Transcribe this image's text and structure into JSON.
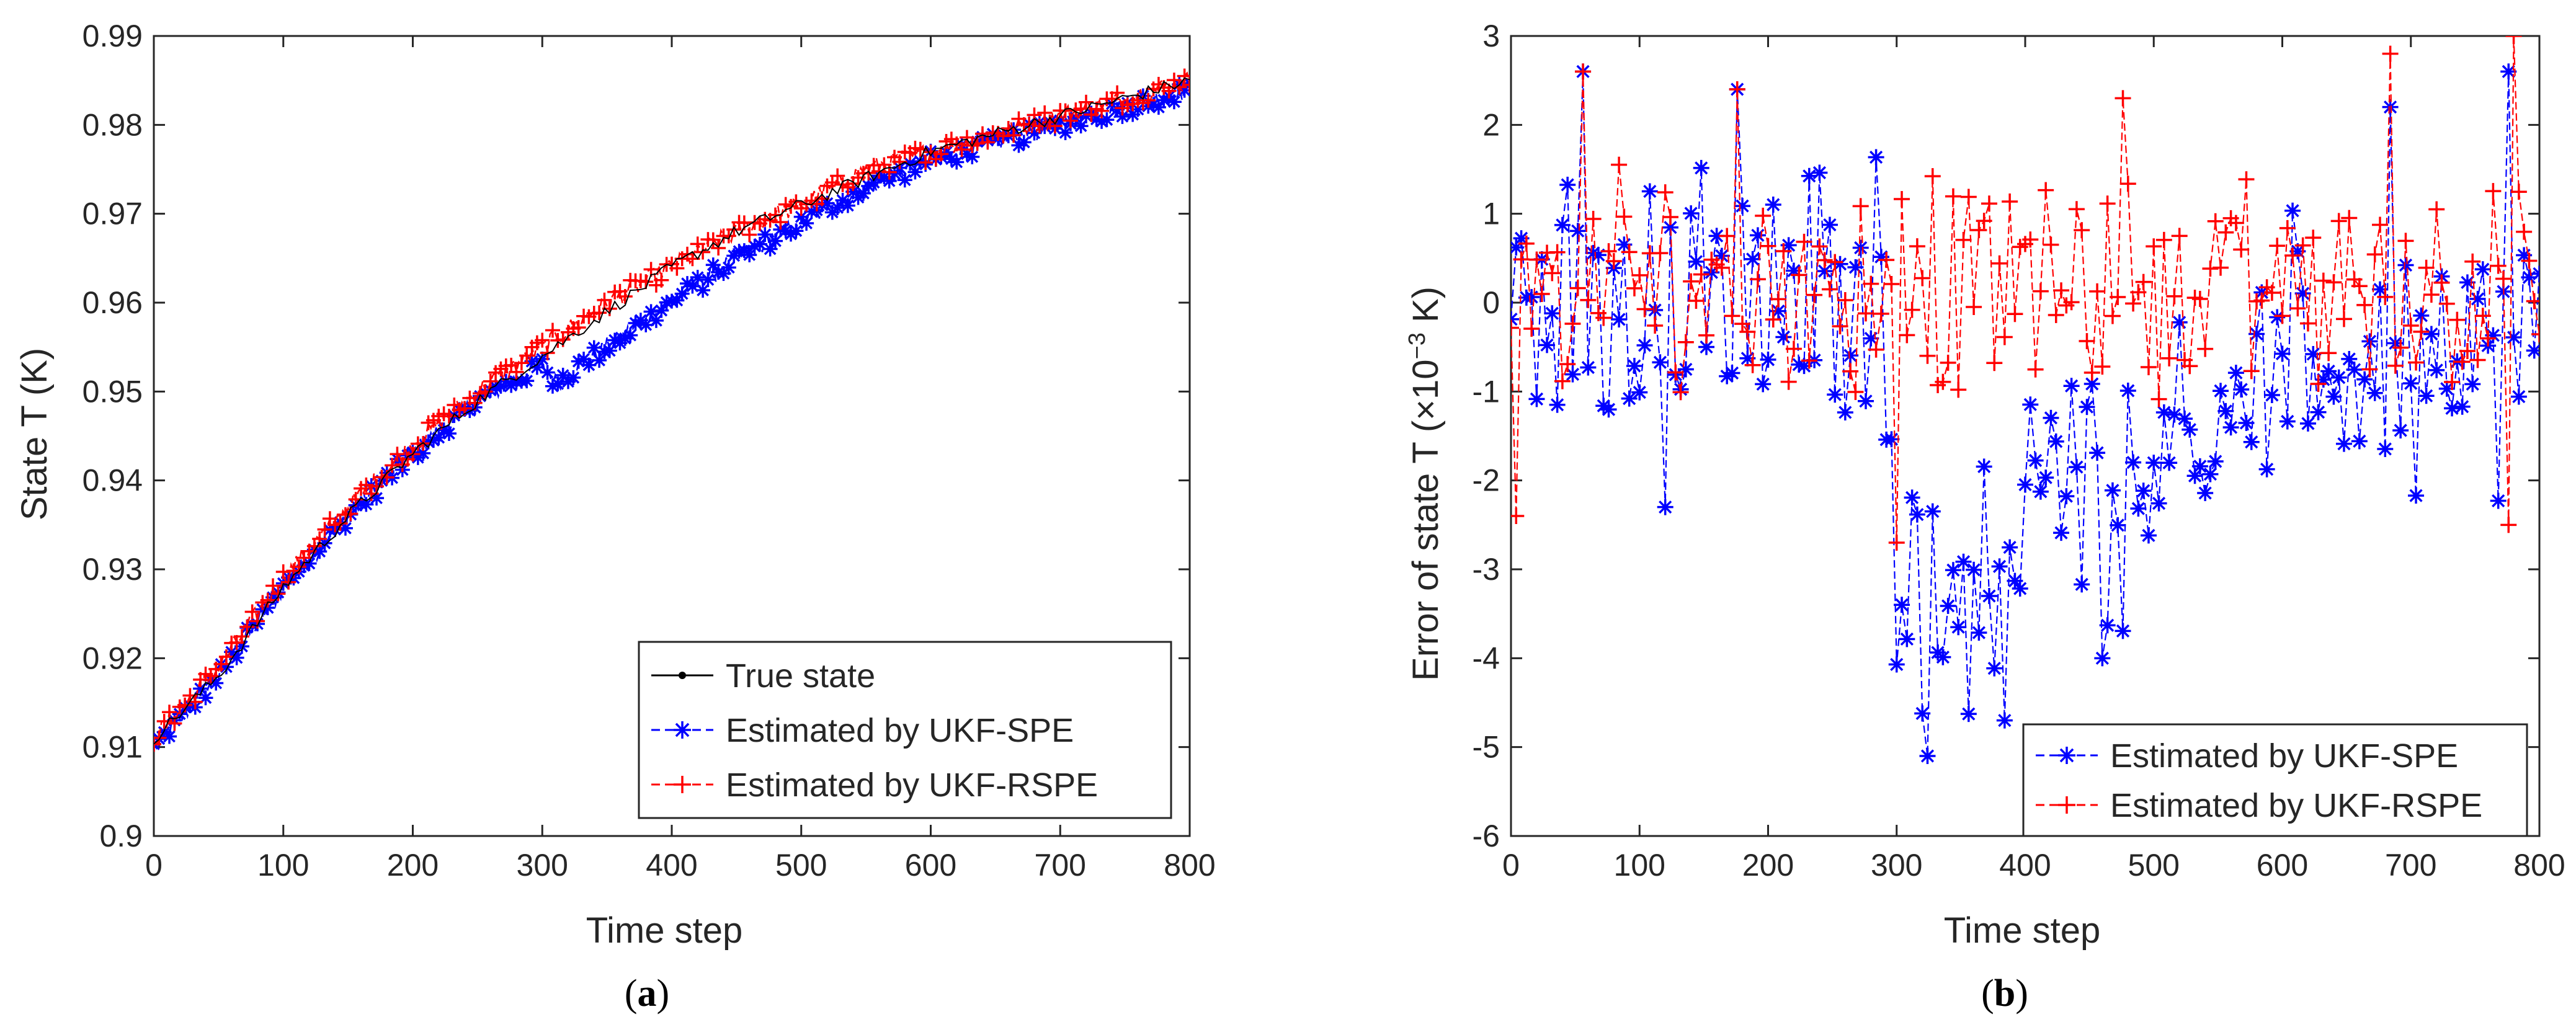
{
  "figure": {
    "captions": [
      "(a)",
      "(b)"
    ],
    "caption_letters": [
      "a",
      "b"
    ],
    "paren_open": "(",
    "paren_close": ")"
  },
  "colors": {
    "true_state": "#000000",
    "ukf_spe": "#0000ff",
    "ukf_rspe": "#ff0000",
    "axis": "#262626"
  },
  "chart_data": [
    {
      "type": "line",
      "panel": "a",
      "title": "",
      "xlabel": "Time step",
      "ylabel": "State T (K)",
      "xlim": [
        0,
        800
      ],
      "ylim": [
        0.9,
        0.99
      ],
      "xticks": [
        0,
        100,
        200,
        300,
        400,
        500,
        600,
        700,
        800
      ],
      "xtick_labels": [
        "0",
        "100",
        "200",
        "300",
        "400",
        "500",
        "600",
        "700",
        "800"
      ],
      "yticks": [
        0.9,
        0.91,
        0.92,
        0.93,
        0.94,
        0.95,
        0.96,
        0.97,
        0.98,
        0.99
      ],
      "ytick_labels": [
        "0.9",
        "0.91",
        "0.92",
        "0.93",
        "0.94",
        "0.95",
        "0.96",
        "0.97",
        "0.98",
        "0.99"
      ],
      "legend_position": "bottom-right",
      "series": [
        {
          "name": "True state",
          "marker": "dot",
          "color": "#000000",
          "x": [
            0,
            50,
            100,
            150,
            200,
            250,
            300,
            350,
            400,
            450,
            500,
            550,
            600,
            650,
            700,
            750,
            800
          ],
          "y": [
            0.911,
            0.918,
            0.928,
            0.936,
            0.943,
            0.949,
            0.954,
            0.959,
            0.964,
            0.968,
            0.971,
            0.974,
            0.977,
            0.979,
            0.981,
            0.983,
            0.985
          ]
        },
        {
          "name": "Estimated by UKF-SPE",
          "marker": "asterisk",
          "color": "#0000ff",
          "x": [
            0,
            50,
            100,
            150,
            200,
            250,
            300,
            310,
            350,
            400,
            450,
            500,
            550,
            600,
            650,
            700,
            750,
            800
          ],
          "y": [
            0.91,
            0.918,
            0.928,
            0.936,
            0.943,
            0.949,
            0.953,
            0.951,
            0.955,
            0.96,
            0.965,
            0.969,
            0.973,
            0.976,
            0.978,
            0.98,
            0.982,
            0.984
          ]
        },
        {
          "name": "Estimated by UKF-RSPE",
          "marker": "plus",
          "color": "#ff0000",
          "x": [
            0,
            50,
            100,
            150,
            200,
            250,
            300,
            350,
            400,
            450,
            500,
            550,
            600,
            650,
            700,
            750,
            800
          ],
          "y": [
            0.911,
            0.919,
            0.929,
            0.937,
            0.944,
            0.95,
            0.955,
            0.96,
            0.964,
            0.968,
            0.971,
            0.975,
            0.977,
            0.979,
            0.981,
            0.983,
            0.985
          ]
        }
      ]
    },
    {
      "type": "line",
      "panel": "b",
      "title": "",
      "xlabel": "Time step",
      "ylabel": "Error of state T (×10",
      "ylabel_exponent": "−3",
      "ylabel_suffix": " K)",
      "xlim": [
        0,
        800
      ],
      "ylim": [
        -6,
        3
      ],
      "xticks": [
        0,
        100,
        200,
        300,
        400,
        500,
        600,
        700,
        800
      ],
      "xtick_labels": [
        "0",
        "100",
        "200",
        "300",
        "400",
        "500",
        "600",
        "700",
        "800"
      ],
      "yticks": [
        -6,
        -5,
        -4,
        -3,
        -2,
        -1,
        0,
        1,
        2,
        3
      ],
      "ytick_labels": [
        "-6",
        "-5",
        "-4",
        "-3",
        "-2",
        "-1",
        "0",
        "1",
        "2",
        "3"
      ],
      "legend_position": "bottom-right",
      "series": [
        {
          "name": "Estimated by UKF-SPE",
          "marker": "asterisk",
          "color": "#0000ff",
          "segments": [
            {
              "x_start": 0,
              "x_end": 300,
              "mean": 0.0,
              "spread": 1.8
            },
            {
              "x_start": 300,
              "x_end": 400,
              "mean": -3.2,
              "spread": 1.9
            },
            {
              "x_start": 400,
              "x_end": 500,
              "mean": -2.0,
              "spread": 1.8
            },
            {
              "x_start": 500,
              "x_end": 600,
              "mean": -1.2,
              "spread": 1.8
            },
            {
              "x_start": 600,
              "x_end": 800,
              "mean": -0.7,
              "spread": 1.8
            }
          ],
          "extremes": [
            {
              "x": 55,
              "y": 2.6
            },
            {
              "x": 175,
              "y": 2.4
            },
            {
              "x": 775,
              "y": 2.6
            },
            {
              "x": 685,
              "y": 2.2
            },
            {
              "x": 325,
              "y": -5.1
            },
            {
              "x": 385,
              "y": -4.7
            },
            {
              "x": 460,
              "y": -4.0
            },
            {
              "x": 120,
              "y": -2.3
            }
          ]
        },
        {
          "name": "Estimated by UKF-RSPE",
          "marker": "plus",
          "color": "#ff0000",
          "segments": [
            {
              "x_start": 0,
              "x_end": 800,
              "mean": 0.2,
              "spread": 1.5
            }
          ],
          "extremes": [
            {
              "x": 55,
              "y": 2.6
            },
            {
              "x": 175,
              "y": 2.4
            },
            {
              "x": 475,
              "y": 2.3
            },
            {
              "x": 685,
              "y": 2.8
            },
            {
              "x": 780,
              "y": 3.0
            },
            {
              "x": 5,
              "y": -2.4
            },
            {
              "x": 300,
              "y": -2.7
            },
            {
              "x": 775,
              "y": -2.5
            }
          ]
        }
      ]
    }
  ]
}
